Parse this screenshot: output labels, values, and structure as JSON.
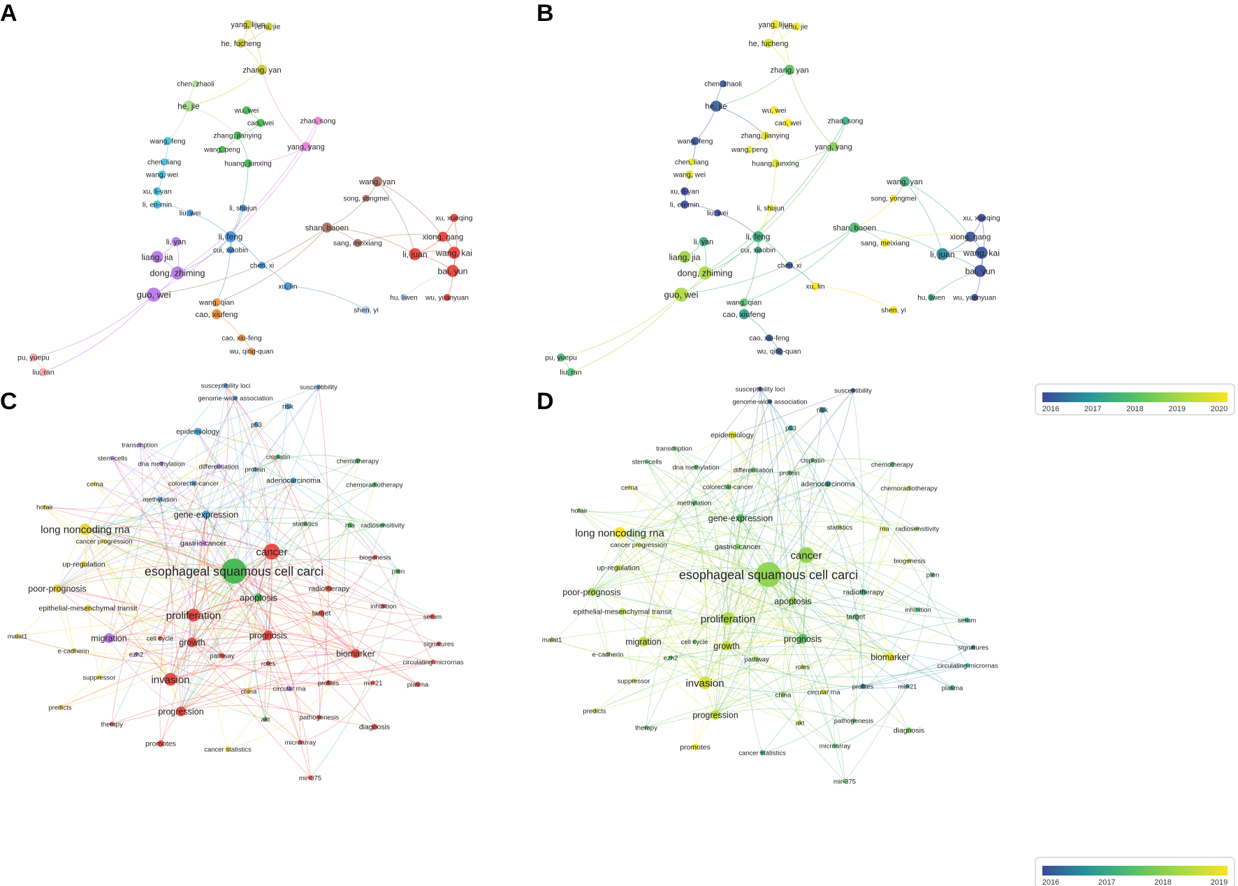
{
  "panels": [
    {
      "letter": "A",
      "mode": "cluster"
    },
    {
      "letter": "B",
      "mode": "overlay"
    },
    {
      "letter": "C",
      "mode": "cluster"
    },
    {
      "letter": "D",
      "mode": "overlay"
    }
  ],
  "colors": {
    "red": "#e8403a",
    "green": "#3fb54a",
    "blue": "#4aa3df",
    "yellow": "#e9d42c",
    "purple": "#b576e8",
    "orange": "#f0923b",
    "brown": "#a8705f",
    "pink": "#e57fd8",
    "cyan": "#3fc1dd",
    "lightgreen": "#a7dc8e",
    "olive": "#c9c839",
    "salmon": "#f2a1a1",
    "lightblue": "#b3cdf0",
    "dblue": "#3d8ed6",
    "magenta": "#a65be0"
  },
  "colorscale": {
    "stops": [
      "#3b4a9b",
      "#24979a",
      "#55c167",
      "#a9d941",
      "#f7e51e"
    ],
    "authors_ticks": [
      "2016",
      "2017",
      "2018",
      "2019",
      "2020"
    ],
    "keywords_ticks": [
      "2016",
      "2017",
      "2018",
      "2019"
    ]
  },
  "author_network": {
    "nodes": [
      {
        "label": "yang, lijun",
        "cluster": "olive",
        "size": 9,
        "year": 2019.8
      },
      {
        "label": "chu, jie",
        "cluster": "olive",
        "size": 8,
        "year": 2020
      },
      {
        "label": "he, fucheng",
        "cluster": "olive",
        "size": 9,
        "year": 2019.5
      },
      {
        "label": "zhang, yan",
        "cluster": "olive",
        "size": 10,
        "year": 2018.0
      },
      {
        "label": "chen, zhaoli",
        "cluster": "lightgreen",
        "size": 7,
        "year": 2016.2
      },
      {
        "label": "he, jie",
        "cluster": "lightgreen",
        "size": 11,
        "year": 2016.3
      },
      {
        "label": "wu, wei",
        "cluster": "green",
        "size": 8,
        "year": 2020
      },
      {
        "label": "cao, wei",
        "cluster": "green",
        "size": 8,
        "year": 2020
      },
      {
        "label": "zhang, jianying",
        "cluster": "green",
        "size": 8,
        "year": 2019.8
      },
      {
        "label": "wang, peng",
        "cluster": "green",
        "size": 7,
        "year": 2019.7
      },
      {
        "label": "huang, junxing",
        "cluster": "green",
        "size": 8,
        "year": 2019.6
      },
      {
        "label": "zhao, song",
        "cluster": "pink",
        "size": 8,
        "year": 2017.5
      },
      {
        "label": "yang, yang",
        "cluster": "pink",
        "size": 9,
        "year": 2018.5
      },
      {
        "label": "wang, feng",
        "cluster": "cyan",
        "size": 8,
        "year": 2016.1
      },
      {
        "label": "chen, liang",
        "cluster": "cyan",
        "size": 7,
        "year": 2019.8
      },
      {
        "label": "wang, wei",
        "cluster": "cyan",
        "size": 8,
        "year": 2019.7
      },
      {
        "label": "xu, li-yan",
        "cluster": "cyan",
        "size": 8,
        "year": 2016.0
      },
      {
        "label": "li, en-min",
        "cluster": "cyan",
        "size": 8,
        "year": 2016.0
      },
      {
        "label": "liu, wei",
        "cluster": "dblue",
        "size": 7,
        "year": 2016.0
      },
      {
        "label": "li, shujun",
        "cluster": "dblue",
        "size": 7,
        "year": 2019.8
      },
      {
        "label": "li, feng",
        "cluster": "dblue",
        "size": 11,
        "year": 2017.5
      },
      {
        "label": "cui, xiaobin",
        "cluster": "dblue",
        "size": 7,
        "year": 2017.5
      },
      {
        "label": "chen, xi",
        "cluster": "dblue",
        "size": 7,
        "year": 2016.2
      },
      {
        "label": "xu, lin",
        "cluster": "dblue",
        "size": 8,
        "year": 2020
      },
      {
        "label": "wang, yan",
        "cluster": "brown",
        "size": 10,
        "year": 2017.6
      },
      {
        "label": "song, yongmei",
        "cluster": "brown",
        "size": 7,
        "year": 2020
      },
      {
        "label": "shan, baoen",
        "cluster": "brown",
        "size": 10,
        "year": 2017.8
      },
      {
        "label": "sang, meixiang",
        "cluster": "brown",
        "size": 8,
        "year": 2020
      },
      {
        "label": "xu, xueqing",
        "cluster": "red",
        "size": 8,
        "year": 2016.0
      },
      {
        "label": "xiong, gang",
        "cluster": "red",
        "size": 10,
        "year": 2016.1
      },
      {
        "label": "li, juan",
        "cluster": "red",
        "size": 12,
        "year": 2016.8
      },
      {
        "label": "wang, kai",
        "cluster": "red",
        "size": 12,
        "year": 2016.1
      },
      {
        "label": "bai, yun",
        "cluster": "red",
        "size": 12,
        "year": 2016.0
      },
      {
        "label": "hu, liwen",
        "cluster": "lightblue",
        "size": 7,
        "year": 2017.5
      },
      {
        "label": "wu, yuanyuan",
        "cluster": "red",
        "size": 7,
        "year": 2016.0
      },
      {
        "label": "shen, yi",
        "cluster": "lightblue",
        "size": 8,
        "year": 2020
      },
      {
        "label": "li, yan",
        "cluster": "purple",
        "size": 9,
        "year": 2017.4
      },
      {
        "label": "liang, jia",
        "cluster": "purple",
        "size": 12,
        "year": 2018.8
      },
      {
        "label": "dong, zhiming",
        "cluster": "purple",
        "size": 13,
        "year": 2019.0
      },
      {
        "label": "guo, wei",
        "cluster": "purple",
        "size": 14,
        "year": 2019.0
      },
      {
        "label": "wang, qian",
        "cluster": "orange",
        "size": 8,
        "year": 2018.0
      },
      {
        "label": "cao, xiufeng",
        "cluster": "orange",
        "size": 10,
        "year": 2017.2
      },
      {
        "label": "cao, xiu-feng",
        "cluster": "orange",
        "size": 7,
        "year": 2016.2
      },
      {
        "label": "wu, qing-quan",
        "cluster": "orange",
        "size": 7,
        "year": 2016.2
      },
      {
        "label": "pu, yuepu",
        "cluster": "salmon",
        "size": 8,
        "year": 2017.8
      },
      {
        "label": "liu, ran",
        "cluster": "salmon",
        "size": 8,
        "year": 2017.8
      }
    ]
  },
  "keyword_network": {
    "nodes": [
      {
        "label": "susceptibility loci",
        "cluster": "blue",
        "size": 3,
        "year": 2016.2
      },
      {
        "label": "susceptibility",
        "cluster": "blue",
        "size": 3,
        "year": 2016.0
      },
      {
        "label": "genome-wide association",
        "cluster": "blue",
        "size": 3,
        "year": 2016.3
      },
      {
        "label": "risk",
        "cluster": "blue",
        "size": 5,
        "year": 2016.5
      },
      {
        "label": "p53",
        "cluster": "blue",
        "size": 4,
        "year": 2016.8
      },
      {
        "label": "epidemiology",
        "cluster": "blue",
        "size": 7,
        "year": 2018.8
      },
      {
        "label": "transcription",
        "cluster": "purple",
        "size": 3,
        "year": 2017.5
      },
      {
        "label": "stem-cells",
        "cluster": "purple",
        "size": 3,
        "year": 2017.5
      },
      {
        "label": "dna methylation",
        "cluster": "purple",
        "size": 3,
        "year": 2017.5
      },
      {
        "label": "differentiation",
        "cluster": "purple",
        "size": 4,
        "year": 2017.5
      },
      {
        "label": "cisplatin",
        "cluster": "green",
        "size": 3,
        "year": 2017.5
      },
      {
        "label": "protein",
        "cluster": "blue",
        "size": 3,
        "year": 2017.5
      },
      {
        "label": "chemotherapy",
        "cluster": "green",
        "size": 4,
        "year": 2017.5
      },
      {
        "label": "adenocarcinoma",
        "cluster": "blue",
        "size": 5,
        "year": 2016.8
      },
      {
        "label": "chemoradiotherapy",
        "cluster": "green",
        "size": 3,
        "year": 2018.5
      },
      {
        "label": "cerna",
        "cluster": "yellow",
        "size": 3,
        "year": 2019.0
      },
      {
        "label": "colorectal-cancer",
        "cluster": "blue",
        "size": 4,
        "year": 2017.5
      },
      {
        "label": "methylation",
        "cluster": "blue",
        "size": 4,
        "year": 2017.5
      },
      {
        "label": "hotair",
        "cluster": "yellow",
        "size": 3,
        "year": 2018.0
      },
      {
        "label": "gene-expression",
        "cluster": "blue",
        "size": 8,
        "year": 2017.5
      },
      {
        "label": "long noncoding rna",
        "cluster": "yellow",
        "size": 12,
        "year": 2019.0
      },
      {
        "label": "statistics",
        "cluster": "green",
        "size": 3,
        "year": 2018.2
      },
      {
        "label": "rna",
        "cluster": "green",
        "size": 4,
        "year": 2018.8
      },
      {
        "label": "radiosensitivity",
        "cluster": "green",
        "size": 3,
        "year": 2018.0
      },
      {
        "label": "cancer progression",
        "cluster": "yellow",
        "size": 3,
        "year": 2018.5
      },
      {
        "label": "gastric-cancer",
        "cluster": "purple",
        "size": 5,
        "year": 2017.8
      },
      {
        "label": "cancer",
        "cluster": "red",
        "size": 18,
        "year": 2018.0
      },
      {
        "label": "biogenesis",
        "cluster": "red",
        "size": 3,
        "year": 2018.5
      },
      {
        "label": "up-regulation",
        "cluster": "yellow",
        "size": 5,
        "year": 2018.5
      },
      {
        "label": "esophageal squamous cell carci",
        "cluster": "green",
        "size": 30,
        "year": 2018.0
      },
      {
        "label": "pten",
        "cluster": "green",
        "size": 3,
        "year": 2017.5
      },
      {
        "label": "poor-prognosis",
        "cluster": "yellow",
        "size": 8,
        "year": 2018.2
      },
      {
        "label": "radiotherapy",
        "cluster": "red",
        "size": 5,
        "year": 2017.0
      },
      {
        "label": "apoptosis",
        "cluster": "green",
        "size": 8,
        "year": 2018.0
      },
      {
        "label": "epithelial-mesenchymal transit",
        "cluster": "yellow",
        "size": 6,
        "year": 2018.3
      },
      {
        "label": "inhibition",
        "cluster": "red",
        "size": 3,
        "year": 2017.5
      },
      {
        "label": "proliferation",
        "cluster": "red",
        "size": 14,
        "year": 2018.3
      },
      {
        "label": "serum",
        "cluster": "red",
        "size": 4,
        "year": 2017.0
      },
      {
        "label": "target",
        "cluster": "red",
        "size": 5,
        "year": 2017.5
      },
      {
        "label": "malat1",
        "cluster": "yellow",
        "size": 3,
        "year": 2018.0
      },
      {
        "label": "migration",
        "cluster": "purple",
        "size": 10,
        "year": 2018.5
      },
      {
        "label": "cell cycle",
        "cluster": "red",
        "size": 3,
        "year": 2017.5
      },
      {
        "label": "growth",
        "cluster": "red",
        "size": 10,
        "year": 2018.5
      },
      {
        "label": "prognosis",
        "cluster": "red",
        "size": 10,
        "year": 2017.5
      },
      {
        "label": "signatures",
        "cluster": "red",
        "size": 3,
        "year": 2016.5
      },
      {
        "label": "e-cadherin",
        "cluster": "yellow",
        "size": 3,
        "year": 2018.0
      },
      {
        "label": "ezh2",
        "cluster": "purple",
        "size": 3,
        "year": 2017.5
      },
      {
        "label": "pathway",
        "cluster": "red",
        "size": 4,
        "year": 2018.0
      },
      {
        "label": "biomarker",
        "cluster": "red",
        "size": 9,
        "year": 2019.0
      },
      {
        "label": "circulating micrornas",
        "cluster": "red",
        "size": 3,
        "year": 2017.0
      },
      {
        "label": "suppressor",
        "cluster": "yellow",
        "size": 3,
        "year": 2018.5
      },
      {
        "label": "roles",
        "cluster": "red",
        "size": 3,
        "year": 2018.5
      },
      {
        "label": "profiles",
        "cluster": "red",
        "size": 4,
        "year": 2016.5
      },
      {
        "label": "mir-21",
        "cluster": "red",
        "size": 3,
        "year": 2016.5
      },
      {
        "label": "invasion",
        "cluster": "red",
        "size": 14,
        "year": 2018.7
      },
      {
        "label": "circular rna",
        "cluster": "purple",
        "size": 4,
        "year": 2019.0
      },
      {
        "label": "plasma",
        "cluster": "red",
        "size": 4,
        "year": 2017.0
      },
      {
        "label": "china",
        "cluster": "yellow",
        "size": 4,
        "year": 2018.0
      },
      {
        "label": "predicts",
        "cluster": "yellow",
        "size": 3,
        "year": 2018.5
      },
      {
        "label": "akt",
        "cluster": "green",
        "size": 3,
        "year": 2018.5
      },
      {
        "label": "pathogenesis",
        "cluster": "red",
        "size": 3,
        "year": 2017.5
      },
      {
        "label": "diagnosis",
        "cluster": "red",
        "size": 5,
        "year": 2017.8
      },
      {
        "label": "therapy",
        "cluster": "red",
        "size": 3,
        "year": 2017.5
      },
      {
        "label": "progression",
        "cluster": "red",
        "size": 10,
        "year": 2018.5
      },
      {
        "label": "promotes",
        "cluster": "red",
        "size": 6,
        "year": 2019.0
      },
      {
        "label": "cancer statistics",
        "cluster": "yellow",
        "size": 4,
        "year": 2017.2
      },
      {
        "label": "microarray",
        "cluster": "red",
        "size": 3,
        "year": 2017.5
      },
      {
        "label": "mir-375",
        "cluster": "red",
        "size": 3,
        "year": 2017.5
      }
    ]
  }
}
